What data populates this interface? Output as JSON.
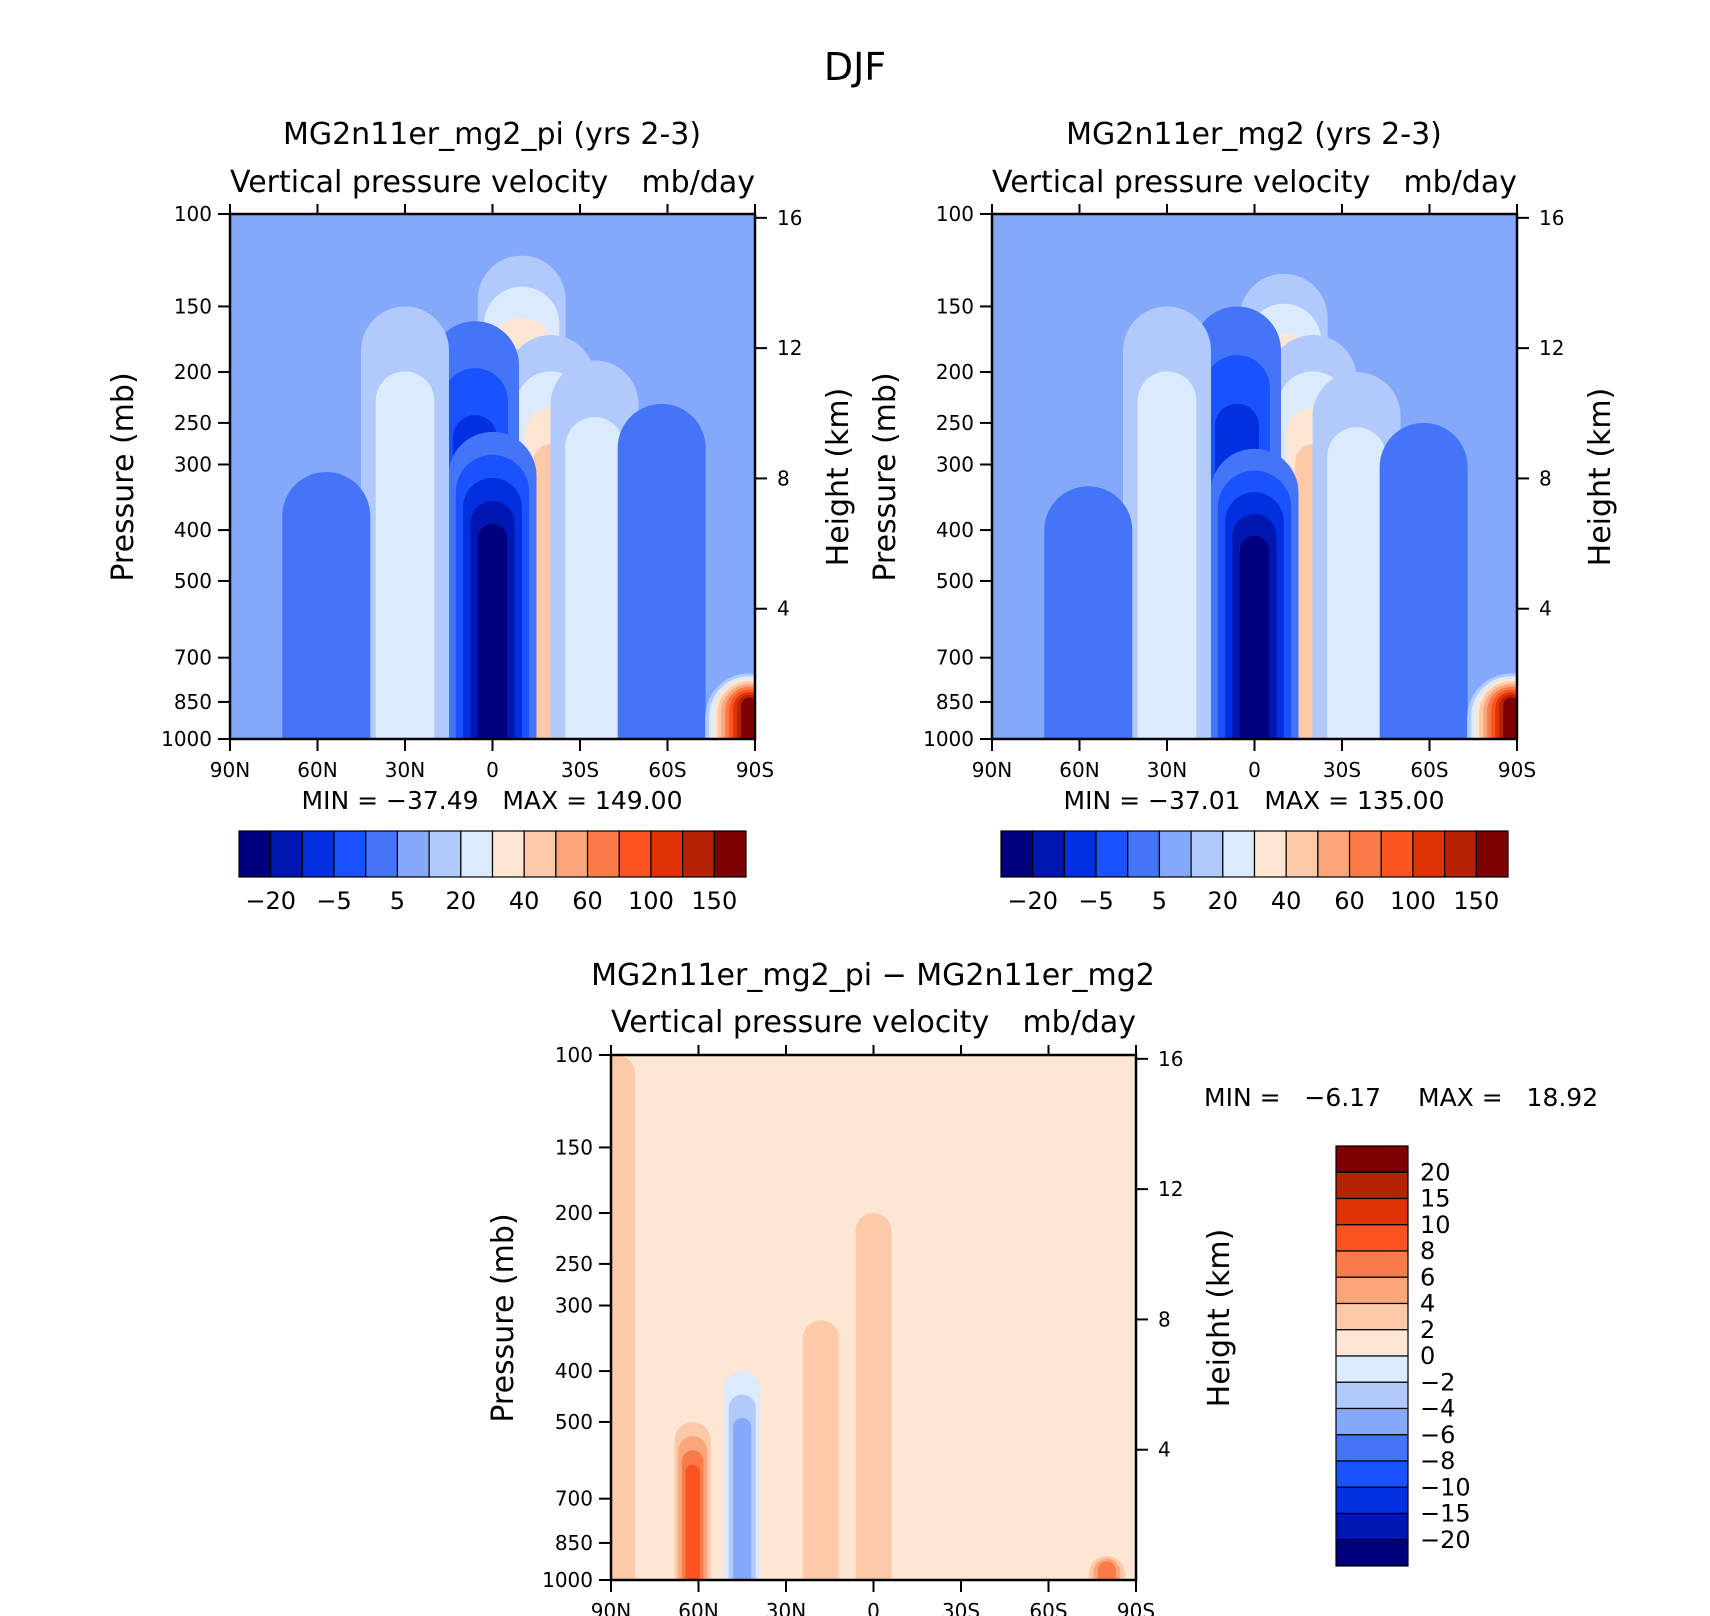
{
  "figure_title": "DJF",
  "colors": {
    "abs_palette": [
      "#00007f",
      "#0016b0",
      "#0030e0",
      "#1a52ff",
      "#4575f7",
      "#84a8fa",
      "#b1c9fb",
      "#dbeafd",
      "#fde7d4",
      "#fcc9a9",
      "#fba57a",
      "#f97b48",
      "#fb5420",
      "#df3306",
      "#b62204",
      "#7e0201"
    ],
    "diff_palette": [
      "#00007f",
      "#0016b0",
      "#0030e0",
      "#1a52ff",
      "#4575f7",
      "#84a8fa",
      "#b1c9fb",
      "#dbeafd",
      "#fde7d4",
      "#fcc9a9",
      "#fba57a",
      "#f97b48",
      "#fb5420",
      "#df3306",
      "#b62204",
      "#7e0201"
    ]
  },
  "panels": [
    {
      "title": "MG2n11er_mg2_pi (yrs 2-3)",
      "subtitle_left": "Vertical pressure velocity",
      "subtitle_right": "mb/day",
      "ylabel": "Pressure (mb)",
      "y2label": "Height (km)",
      "minmax": "MIN = −37.49   MAX = 149.00",
      "cb_labels": [
        "−20",
        "−5",
        "5",
        "20",
        "40",
        "60",
        "100",
        "150"
      ]
    },
    {
      "title": "MG2n11er_mg2 (yrs 2-3)",
      "subtitle_left": "Vertical pressure velocity",
      "subtitle_right": "mb/day",
      "ylabel": "Pressure (mb)",
      "y2label": "Height (km)",
      "minmax": "MIN = −37.01   MAX = 135.00",
      "cb_labels": [
        "−20",
        "−5",
        "5",
        "20",
        "40",
        "60",
        "100",
        "150"
      ]
    },
    {
      "title": "MG2n11er_mg2_pi − MG2n11er_mg2",
      "subtitle_left": "Vertical pressure velocity",
      "subtitle_right": "mb/day",
      "ylabel": "Pressure (mb)",
      "y2label": "Height (km)",
      "min_text": "MIN =   −6.17",
      "max_text": "MAX =   18.92",
      "cb_labels": [
        "20",
        "15",
        "10",
        "8",
        "6",
        "4",
        "2",
        "0",
        "−2",
        "−4",
        "−6",
        "−8",
        "−10",
        "−15",
        "−20"
      ]
    }
  ],
  "chart_data": [
    {
      "type": "heatmap",
      "title": "MG2n11er_mg2_pi (yrs 2-3)",
      "subtitle": "Vertical pressure velocity  mb/day",
      "x_tick_labels": [
        "90N",
        "60N",
        "30N",
        "0",
        "30S",
        "60S",
        "90S"
      ],
      "x_range_deg": [
        90,
        -90
      ],
      "y_tick_labels": [
        "100",
        "150",
        "200",
        "250",
        "300",
        "400",
        "500",
        "700",
        "850",
        "1000"
      ],
      "y_ticks_mb": [
        100,
        150,
        200,
        250,
        300,
        400,
        500,
        700,
        850,
        1000
      ],
      "y_range_mb": [
        100,
        1000
      ],
      "y_scale": "log",
      "y2_tick_labels": [
        "16",
        "12",
        "8",
        "4"
      ],
      "y2_ticks_km": [
        16,
        12,
        8,
        4
      ],
      "contour_levels": [
        -25,
        -20,
        -15,
        -10,
        -5,
        0,
        5,
        10,
        20,
        30,
        40,
        50,
        60,
        80,
        100,
        150
      ],
      "min": -37.49,
      "max": 149.0,
      "features": [
        {
          "lat": -10,
          "p_top": 120,
          "value": 40
        },
        {
          "lat": -20,
          "p_top": 170,
          "value": 22
        },
        {
          "lat": 6,
          "p_top": 160,
          "value": -20
        },
        {
          "lat": 0,
          "p_top": 260,
          "value": -27
        },
        {
          "lat": 30,
          "p_top": 150,
          "value": 5
        },
        {
          "lat": -35,
          "p_top": 190,
          "value": 5
        },
        {
          "lat": -58,
          "p_top": 230,
          "value": -10
        },
        {
          "lat": 57,
          "p_top": 310,
          "value": -10
        },
        {
          "lat": -88,
          "p_top": 750,
          "value": 120
        }
      ]
    },
    {
      "type": "heatmap",
      "title": "MG2n11er_mg2 (yrs 2-3)",
      "subtitle": "Vertical pressure velocity  mb/day",
      "x_tick_labels": [
        "90N",
        "60N",
        "30N",
        "0",
        "30S",
        "60S",
        "90S"
      ],
      "x_range_deg": [
        90,
        -90
      ],
      "y_tick_labels": [
        "100",
        "150",
        "200",
        "250",
        "300",
        "400",
        "500",
        "700",
        "850",
        "1000"
      ],
      "y_ticks_mb": [
        100,
        150,
        200,
        250,
        300,
        400,
        500,
        700,
        850,
        1000
      ],
      "y_range_mb": [
        100,
        1000
      ],
      "y_scale": "log",
      "y2_tick_labels": [
        "16",
        "12",
        "8",
        "4"
      ],
      "y2_ticks_km": [
        16,
        12,
        8,
        4
      ],
      "contour_levels": [
        -25,
        -20,
        -15,
        -10,
        -5,
        0,
        5,
        10,
        20,
        30,
        40,
        50,
        60,
        80,
        100,
        150
      ],
      "min": -37.01,
      "max": 135.0,
      "features": [
        {
          "lat": -10,
          "p_top": 130,
          "value": 40
        },
        {
          "lat": -20,
          "p_top": 170,
          "value": 22
        },
        {
          "lat": 6,
          "p_top": 150,
          "value": -20
        },
        {
          "lat": 0,
          "p_top": 280,
          "value": -27
        },
        {
          "lat": 30,
          "p_top": 150,
          "value": 5
        },
        {
          "lat": -35,
          "p_top": 200,
          "value": 5
        },
        {
          "lat": -58,
          "p_top": 250,
          "value": -10
        },
        {
          "lat": 57,
          "p_top": 330,
          "value": -10
        },
        {
          "lat": -88,
          "p_top": 750,
          "value": 110
        }
      ]
    },
    {
      "type": "heatmap",
      "title": "MG2n11er_mg2_pi − MG2n11er_mg2",
      "subtitle": "Vertical pressure velocity  mb/day",
      "x_tick_labels": [
        "90N",
        "60N",
        "30N",
        "0",
        "30S",
        "60S",
        "90S"
      ],
      "x_range_deg": [
        90,
        -90
      ],
      "y_tick_labels": [
        "100",
        "150",
        "200",
        "250",
        "300",
        "400",
        "500",
        "700",
        "850",
        "1000"
      ],
      "y_ticks_mb": [
        100,
        150,
        200,
        250,
        300,
        400,
        500,
        700,
        850,
        1000
      ],
      "y_range_mb": [
        100,
        1000
      ],
      "y_scale": "log",
      "y2_tick_labels": [
        "16",
        "12",
        "8",
        "4"
      ],
      "y2_ticks_km": [
        16,
        12,
        8,
        4
      ],
      "contour_levels": [
        -20,
        -15,
        -10,
        -8,
        -6,
        -4,
        -2,
        0,
        2,
        4,
        6,
        8,
        10,
        15,
        20
      ],
      "min": -6.17,
      "max": 18.92,
      "features": [
        {
          "lat": 88,
          "p_top": 100,
          "value": 3
        },
        {
          "lat": 62,
          "p_top": 500,
          "value": 8
        },
        {
          "lat": 45,
          "p_top": 400,
          "value": -5
        },
        {
          "lat": 18,
          "p_top": 320,
          "value": 3
        },
        {
          "lat": 0,
          "p_top": 200,
          "value": 3
        },
        {
          "lat": -80,
          "p_top": 900,
          "value": 6
        }
      ]
    }
  ]
}
